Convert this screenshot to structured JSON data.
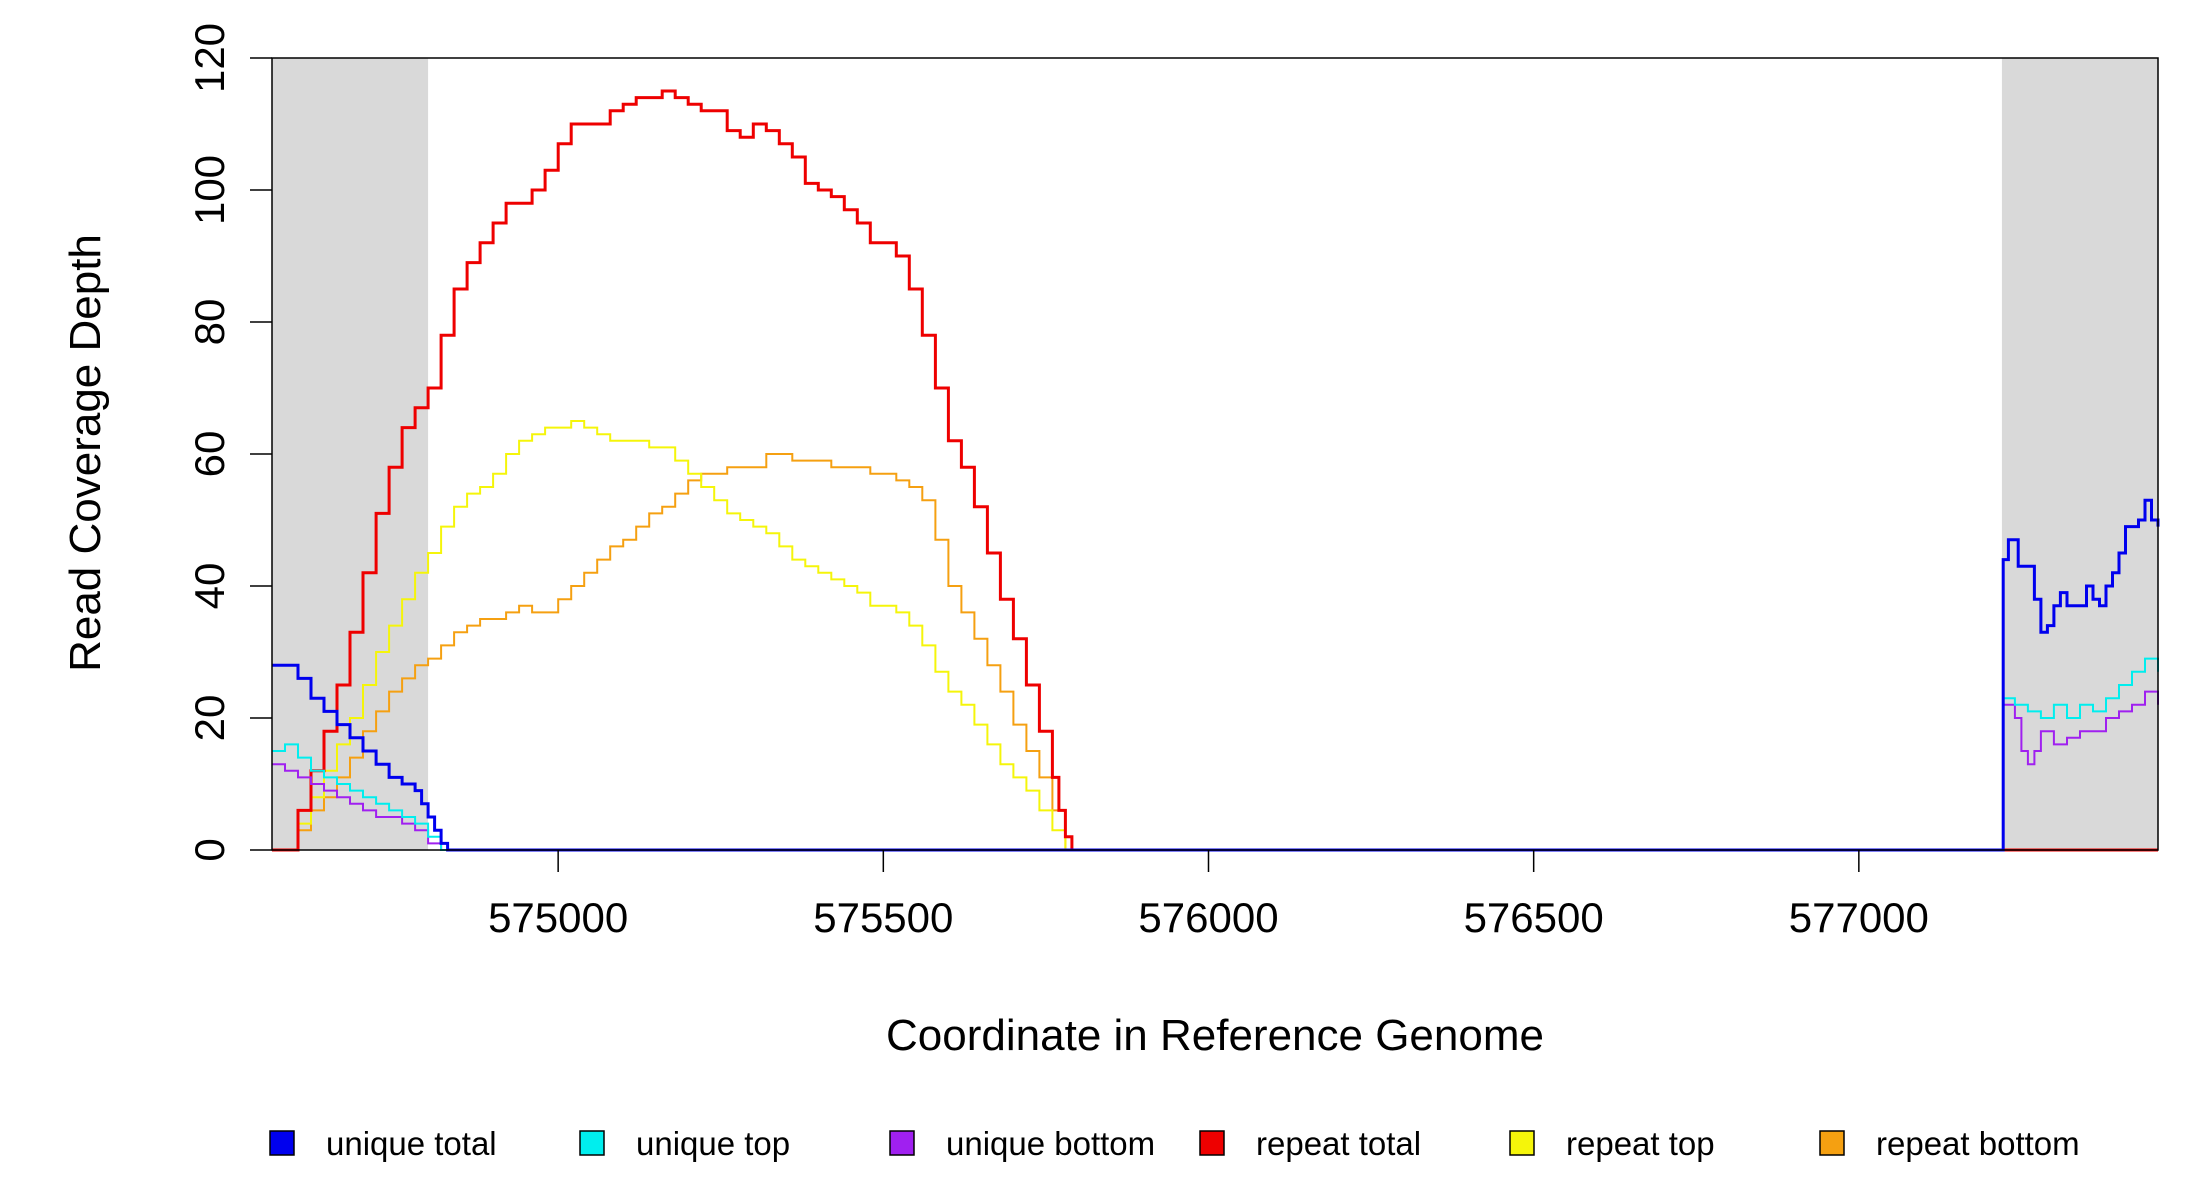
{
  "chart_data": {
    "type": "line",
    "title": "",
    "xlabel": "Coordinate in Reference Genome",
    "ylabel": "Read Coverage Depth",
    "xlim": [
      574560,
      577460
    ],
    "ylim": [
      0,
      120
    ],
    "x_ticks": [
      575000,
      575500,
      576000,
      576500,
      577000
    ],
    "y_ticks": [
      0,
      20,
      40,
      60,
      80,
      100,
      120
    ],
    "x_tick_labels": [
      "575000",
      "575500",
      "576000",
      "576500",
      "577000"
    ],
    "y_tick_labels": [
      "0",
      "20",
      "40",
      "60",
      "80",
      "100",
      "120"
    ],
    "shaded_regions": [
      {
        "from": 574560,
        "to": 574800,
        "color": "#d9d9d9"
      },
      {
        "from": 577220,
        "to": 577460,
        "color": "#d9d9d9"
      }
    ],
    "grid": false,
    "legend_position": "bottom",
    "series": [
      {
        "name": "unique total",
        "color": "#0000ee",
        "stroke": 3,
        "x": [
          574560,
          574590,
          574600,
          574620,
          574640,
          574660,
          574680,
          574700,
          574720,
          574740,
          574760,
          574780,
          574790,
          574800,
          574810,
          574820,
          574830,
          574840,
          575780,
          577220,
          577222,
          577230,
          577245,
          577260,
          577270,
          577280,
          577290,
          577300,
          577310,
          577320,
          577335,
          577350,
          577360,
          577370,
          577380,
          577390,
          577400,
          577410,
          577420,
          577430,
          577440,
          577450,
          577460
        ],
        "y": [
          28,
          28,
          26,
          23,
          21,
          19,
          17,
          15,
          13,
          11,
          10,
          9,
          7,
          5,
          3,
          1,
          0,
          0,
          0,
          0,
          44,
          47,
          43,
          43,
          38,
          33,
          34,
          37,
          39,
          37,
          37,
          40,
          38,
          37,
          40,
          42,
          45,
          49,
          49,
          50,
          53,
          50,
          49
        ]
      },
      {
        "name": "unique top",
        "color": "#00eeee",
        "stroke": 2,
        "x": [
          574560,
          574580,
          574600,
          574620,
          574640,
          574660,
          574680,
          574700,
          574720,
          574740,
          574760,
          574780,
          574800,
          574820,
          574840,
          575780,
          577220,
          577222,
          577240,
          577260,
          577280,
          577300,
          577320,
          577340,
          577360,
          577380,
          577400,
          577420,
          577440,
          577460
        ],
        "y": [
          15,
          16,
          14,
          12,
          11,
          10,
          9,
          8,
          7,
          6,
          5,
          4,
          2,
          0,
          0,
          0,
          0,
          23,
          22,
          21,
          20,
          22,
          20,
          22,
          21,
          23,
          25,
          27,
          29,
          27
        ]
      },
      {
        "name": "unique bottom",
        "color": "#a020f0",
        "stroke": 2,
        "x": [
          574560,
          574580,
          574600,
          574620,
          574640,
          574660,
          574680,
          574700,
          574720,
          574740,
          574760,
          574780,
          574800,
          574820,
          574840,
          575780,
          577220,
          577222,
          577240,
          577250,
          577260,
          577270,
          577280,
          577300,
          577320,
          577340,
          577360,
          577380,
          577400,
          577420,
          577440,
          577460
        ],
        "y": [
          13,
          12,
          11,
          10,
          9,
          8,
          7,
          6,
          5,
          5,
          4,
          3,
          1,
          0,
          0,
          0,
          0,
          22,
          20,
          15,
          13,
          15,
          18,
          16,
          17,
          18,
          18,
          20,
          21,
          22,
          24,
          22
        ]
      },
      {
        "name": "repeat total",
        "color": "#ee0000",
        "stroke": 3,
        "x": [
          574560,
          574580,
          574600,
          574620,
          574640,
          574660,
          574680,
          574700,
          574720,
          574740,
          574760,
          574780,
          574800,
          574820,
          574840,
          574860,
          574880,
          574900,
          574920,
          574940,
          574960,
          574980,
          575000,
          575020,
          575040,
          575060,
          575080,
          575100,
          575120,
          575140,
          575160,
          575180,
          575200,
          575220,
          575240,
          575260,
          575280,
          575300,
          575320,
          575340,
          575360,
          575380,
          575400,
          575420,
          575440,
          575460,
          575480,
          575500,
          575520,
          575540,
          575560,
          575580,
          575600,
          575620,
          575640,
          575660,
          575680,
          575700,
          575720,
          575740,
          575760,
          575770,
          575780,
          575790,
          577460
        ],
        "y": [
          0,
          0,
          6,
          12,
          18,
          25,
          33,
          42,
          51,
          58,
          64,
          67,
          70,
          78,
          85,
          89,
          92,
          95,
          98,
          98,
          100,
          103,
          107,
          110,
          110,
          110,
          112,
          113,
          114,
          114,
          115,
          114,
          113,
          112,
          112,
          109,
          108,
          110,
          109,
          107,
          105,
          101,
          100,
          99,
          97,
          95,
          92,
          92,
          90,
          85,
          78,
          70,
          62,
          58,
          52,
          45,
          38,
          32,
          25,
          18,
          11,
          6,
          2,
          0,
          0
        ]
      },
      {
        "name": "repeat top",
        "color": "#f5f50a",
        "stroke": 2,
        "x": [
          574560,
          574580,
          574600,
          574620,
          574640,
          574660,
          574680,
          574700,
          574720,
          574740,
          574760,
          574780,
          574800,
          574820,
          574840,
          574860,
          574880,
          574900,
          574920,
          574940,
          574960,
          574980,
          575000,
          575020,
          575040,
          575060,
          575080,
          575100,
          575120,
          575140,
          575160,
          575180,
          575200,
          575220,
          575240,
          575260,
          575280,
          575300,
          575320,
          575340,
          575360,
          575380,
          575400,
          575420,
          575440,
          575460,
          575480,
          575500,
          575520,
          575540,
          575560,
          575580,
          575600,
          575620,
          575640,
          575660,
          575680,
          575700,
          575720,
          575740,
          575760,
          575780,
          577460
        ],
        "y": [
          0,
          0,
          4,
          8,
          12,
          16,
          20,
          25,
          30,
          34,
          38,
          42,
          45,
          49,
          52,
          54,
          55,
          57,
          60,
          62,
          63,
          64,
          64,
          65,
          64,
          63,
          62,
          62,
          62,
          61,
          61,
          59,
          57,
          55,
          53,
          51,
          50,
          49,
          48,
          46,
          44,
          43,
          42,
          41,
          40,
          39,
          37,
          37,
          36,
          34,
          31,
          27,
          24,
          22,
          19,
          16,
          13,
          11,
          9,
          6,
          3,
          0,
          0
        ]
      },
      {
        "name": "repeat bottom",
        "color": "#f5a011",
        "stroke": 2,
        "x": [
          574560,
          574580,
          574600,
          574620,
          574640,
          574660,
          574680,
          574700,
          574720,
          574740,
          574760,
          574780,
          574800,
          574820,
          574840,
          574860,
          574880,
          574900,
          574920,
          574940,
          574960,
          574980,
          575000,
          575020,
          575040,
          575060,
          575080,
          575100,
          575120,
          575140,
          575160,
          575180,
          575200,
          575220,
          575240,
          575260,
          575280,
          575300,
          575320,
          575340,
          575360,
          575380,
          575400,
          575420,
          575440,
          575460,
          575480,
          575500,
          575520,
          575540,
          575560,
          575580,
          575600,
          575620,
          575640,
          575660,
          575680,
          575700,
          575720,
          575740,
          575760,
          575780,
          577460
        ],
        "y": [
          0,
          0,
          3,
          6,
          8,
          11,
          14,
          18,
          21,
          24,
          26,
          28,
          29,
          31,
          33,
          34,
          35,
          35,
          36,
          37,
          36,
          36,
          38,
          40,
          42,
          44,
          46,
          47,
          49,
          51,
          52,
          54,
          56,
          57,
          57,
          58,
          58,
          58,
          60,
          60,
          59,
          59,
          59,
          58,
          58,
          58,
          57,
          57,
          56,
          55,
          53,
          47,
          40,
          36,
          32,
          28,
          24,
          19,
          15,
          11,
          6,
          0,
          0
        ]
      }
    ]
  },
  "legend": {
    "items": [
      {
        "label": "unique total",
        "color": "#0000ee"
      },
      {
        "label": "unique top",
        "color": "#00eeee"
      },
      {
        "label": "unique bottom",
        "color": "#a020f0"
      },
      {
        "label": "repeat total",
        "color": "#ee0000"
      },
      {
        "label": "repeat top",
        "color": "#f5f50a"
      },
      {
        "label": "repeat bottom",
        "color": "#f5a011"
      }
    ]
  }
}
